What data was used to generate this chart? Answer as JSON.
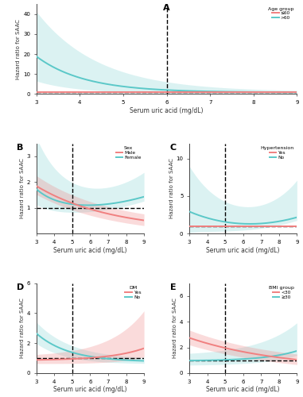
{
  "salmon": "#F08080",
  "teal": "#5BC8C8",
  "salmon_alpha": 0.3,
  "teal_alpha": 0.25,
  "xlabel": "Serum uric acid (mg/dL)",
  "ylabel": "Hazard ratio for SAAC",
  "x_range": [
    3,
    9
  ],
  "panels": {
    "A": {
      "label": "A",
      "legend_title": "Age group",
      "legend_labels": [
        "≤60",
        ">60"
      ],
      "ylim": [
        0,
        45
      ],
      "yticks": [
        0,
        10,
        20,
        30,
        40
      ],
      "vline": 6.0
    },
    "B": {
      "label": "B",
      "legend_title": "Sex",
      "legend_labels": [
        "Male",
        "Female"
      ],
      "ylim": [
        0,
        3.5
      ],
      "yticks": [
        1,
        2,
        3
      ],
      "vline": 5.0
    },
    "C": {
      "label": "C",
      "legend_title": "Hypertension",
      "legend_labels": [
        "Yes",
        "No"
      ],
      "ylim": [
        0,
        12
      ],
      "yticks": [
        0,
        5,
        10
      ],
      "vline": 5.0
    },
    "D": {
      "label": "D",
      "legend_title": "DM",
      "legend_labels": [
        "Yes",
        "No"
      ],
      "ylim": [
        0,
        6
      ],
      "yticks": [
        0,
        2,
        4,
        6
      ],
      "vline": 5.0
    },
    "E": {
      "label": "E",
      "legend_title": "BMI group",
      "legend_labels": [
        "<30",
        "≥30"
      ],
      "ylim": [
        0,
        7
      ],
      "yticks": [
        0,
        2,
        4,
        6
      ],
      "vline": 5.0
    }
  }
}
